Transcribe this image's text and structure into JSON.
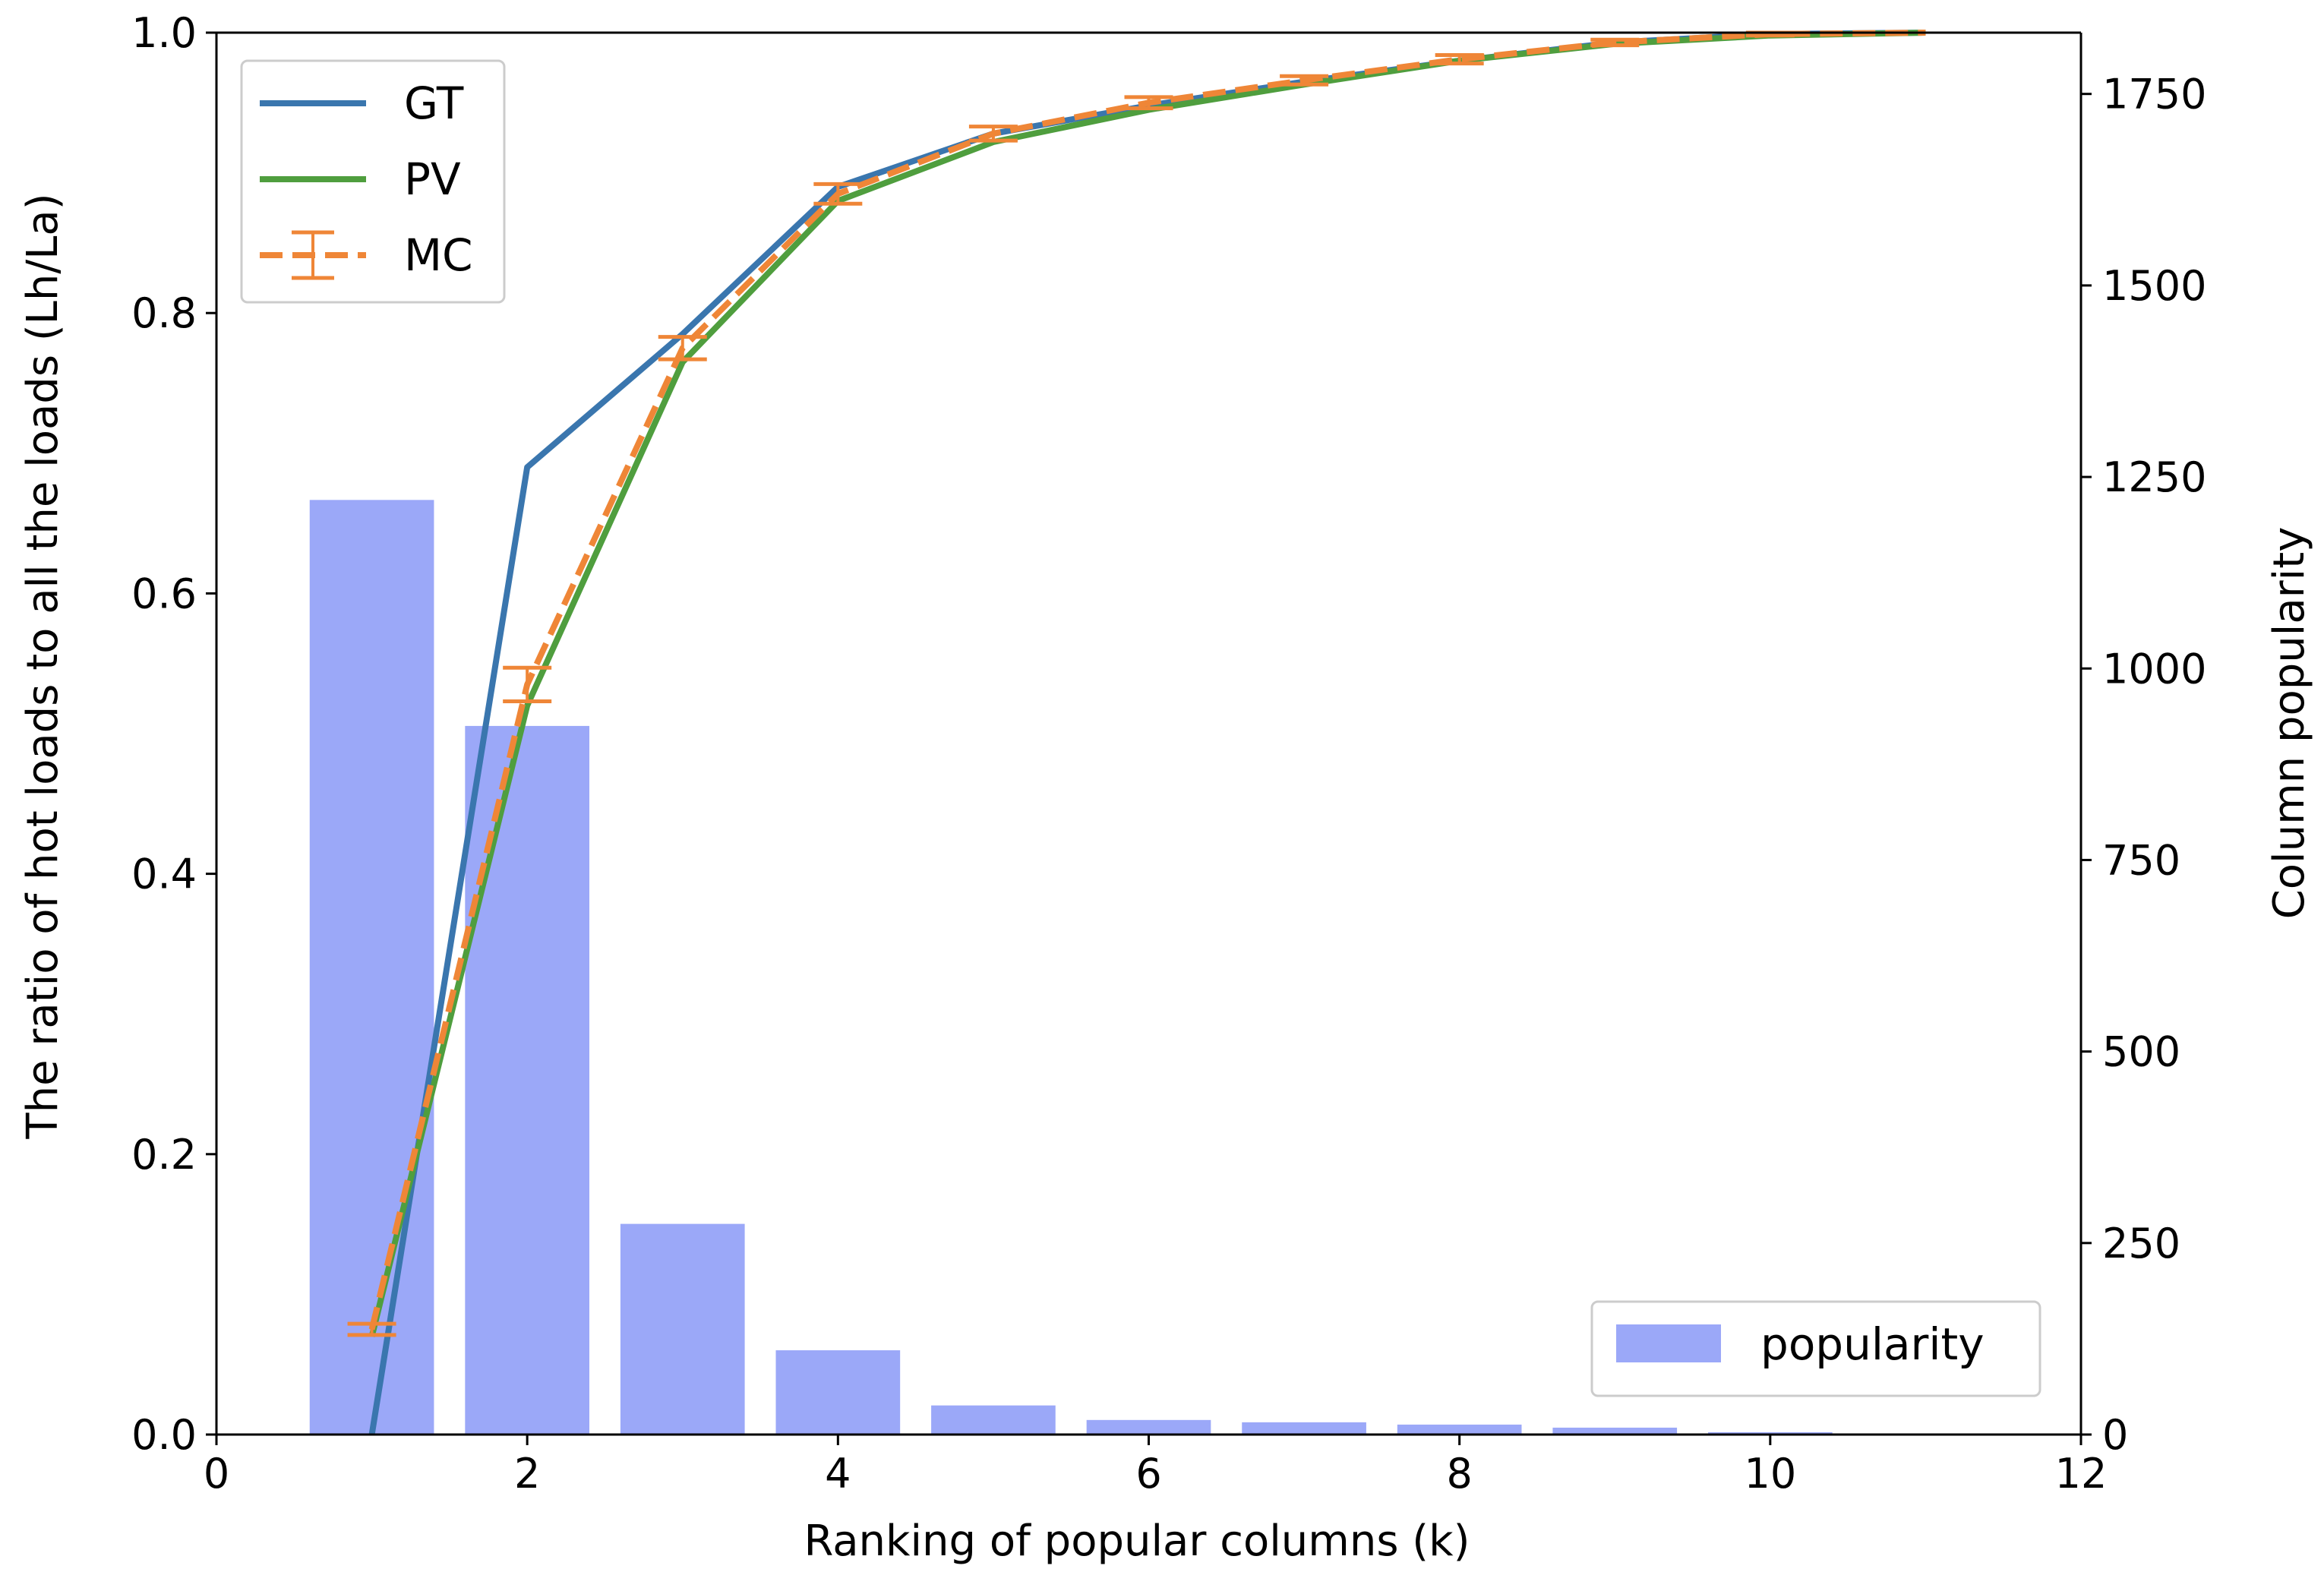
{
  "chart_data": {
    "type": "bar+line",
    "xlabel": "Ranking of popular columns (k)",
    "ylabel": "The ratio of hot loads to all the loads (Lh/La)",
    "y2label": "Column popularity",
    "xlim": [
      0,
      12
    ],
    "ylim": [
      0,
      1.0
    ],
    "y2lim": [
      0,
      1830
    ],
    "xticks": [
      "0",
      "2",
      "4",
      "6",
      "8",
      "10",
      "12"
    ],
    "yticks": [
      "0.0",
      "0.2",
      "0.4",
      "0.6",
      "0.8",
      "1.0"
    ],
    "y2ticks": [
      "0",
      "250",
      "500",
      "750",
      "1000",
      "1250",
      "1500",
      "1750"
    ],
    "grid": false,
    "bars": {
      "name": "popularity",
      "color": "#9ba8f8",
      "x": [
        1,
        2,
        3,
        4,
        5,
        6,
        7,
        8,
        9,
        10
      ],
      "values": [
        1220,
        925,
        275,
        110,
        38,
        19,
        16,
        13,
        9,
        3
      ]
    },
    "series": [
      {
        "name": "GT",
        "color": "#3a76ae",
        "x": [
          1,
          2,
          3,
          4,
          5,
          6,
          7,
          8,
          9,
          10,
          11
        ],
        "values": [
          0.0,
          0.69,
          0.785,
          0.89,
          0.928,
          0.948,
          0.965,
          0.98,
          0.993,
          0.999,
          1.0
        ]
      },
      {
        "name": "PV",
        "color": "#4f9e3e",
        "x": [
          1,
          2,
          3,
          4,
          5,
          6,
          7,
          8,
          9,
          10,
          11
        ],
        "values": [
          0.07,
          0.52,
          0.765,
          0.88,
          0.922,
          0.945,
          0.963,
          0.98,
          0.992,
          0.998,
          1.0
        ]
      },
      {
        "name": "MC",
        "color": "#ef8637",
        "style": "dashed",
        "x": [
          1,
          2,
          3,
          4,
          5,
          6,
          7,
          8,
          9,
          10,
          11
        ],
        "values": [
          0.075,
          0.535,
          0.775,
          0.885,
          0.928,
          0.95,
          0.966,
          0.981,
          0.993,
          0.999,
          1.0
        ],
        "errors": [
          0.004,
          0.012,
          0.008,
          0.007,
          0.005,
          0.004,
          0.003,
          0.003,
          0.002,
          0.001,
          0.0
        ]
      }
    ],
    "legend_lines_position": "top-left",
    "legend_bars_position": "bottom-right"
  }
}
